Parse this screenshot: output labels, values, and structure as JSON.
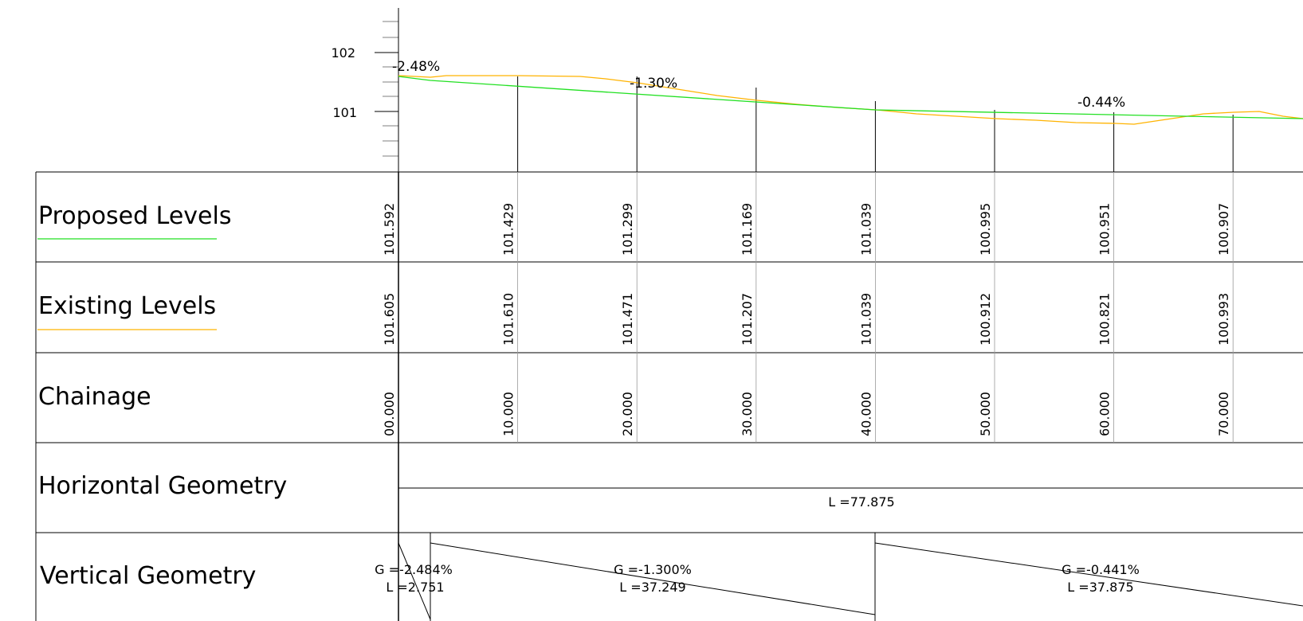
{
  "rows": {
    "proposed": "Proposed Levels",
    "existing": "Existing Levels",
    "chainage": "Chainage",
    "horizontal": "Horizontal Geometry",
    "vertical": "Vertical Geometry"
  },
  "axis": {
    "ticks": [
      {
        "label": "102",
        "value": 102
      },
      {
        "label": "101",
        "value": 101
      }
    ]
  },
  "colors": {
    "proposed": "#22e022",
    "existing": "#ffb300",
    "grid": "#000000",
    "minor": "#9a9a9a"
  },
  "stations": [
    {
      "chainage": "00.000",
      "proposed": "101.592",
      "existing": "101.605"
    },
    {
      "chainage": "10.000",
      "proposed": "101.429",
      "existing": "101.610"
    },
    {
      "chainage": "20.000",
      "proposed": "101.299",
      "existing": "101.471"
    },
    {
      "chainage": "30.000",
      "proposed": "101.169",
      "existing": "101.207"
    },
    {
      "chainage": "40.000",
      "proposed": "101.039",
      "existing": "101.039"
    },
    {
      "chainage": "50.000",
      "proposed": "100.995",
      "existing": "100.912"
    },
    {
      "chainage": "60.000",
      "proposed": "100.951",
      "existing": "100.821"
    },
    {
      "chainage": "70.000",
      "proposed": "100.907",
      "existing": "100.993"
    }
  ],
  "grades": [
    "-2.48%",
    "-1.30%",
    "-0.44%"
  ],
  "horizontal_geometry": {
    "length": "L =77.875"
  },
  "vertical_geometry": [
    {
      "grade": "G =-2.484%",
      "length": "L =2.751"
    },
    {
      "grade": "G =-1.300%",
      "length": "L =37.249"
    },
    {
      "grade": "G =-0.441%",
      "length": "L =37.875"
    }
  ]
}
